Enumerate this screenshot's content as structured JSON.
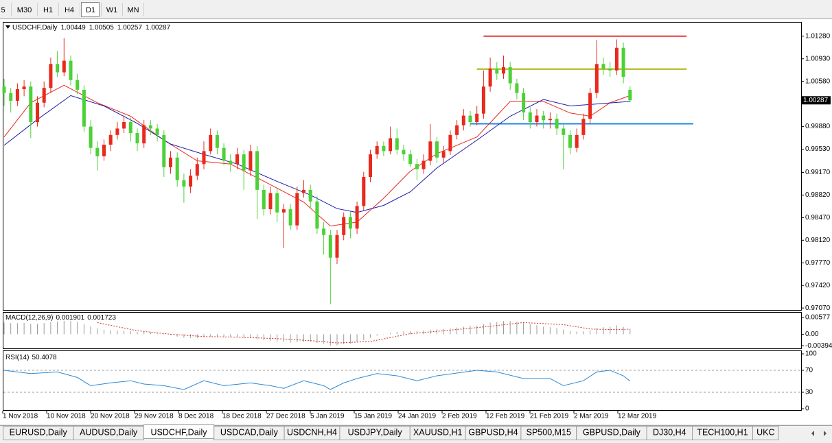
{
  "toolbar": {
    "timeframes": [
      "5",
      "M30",
      "H1",
      "H4",
      "D1",
      "W1",
      "MN"
    ],
    "active": 4
  },
  "chart_data": {
    "type": "candlestick",
    "symbol_label": "USDCHF,Daily",
    "bull_color": "#e8291c",
    "bear_color": "#4cd137",
    "ylim": [
      0.9704,
      1.0149
    ],
    "yticks": [
      {
        "value": 1.0128,
        "label": "1.01280"
      },
      {
        "value": 1.0093,
        "label": "1.00930"
      },
      {
        "value": 1.0058,
        "label": "1.00580"
      },
      {
        "value": 0.9988,
        "label": "0.99880"
      },
      {
        "value": 0.9953,
        "label": "0.99530"
      },
      {
        "value": 0.9917,
        "label": "0.99170"
      },
      {
        "value": 0.9882,
        "label": "0.98820"
      },
      {
        "value": 0.9847,
        "label": "0.98470"
      },
      {
        "value": 0.9812,
        "label": "0.98120"
      },
      {
        "value": 0.9777,
        "label": "0.97770"
      },
      {
        "value": 0.9742,
        "label": "0.97420"
      },
      {
        "value": 0.9707,
        "label": "0.97070"
      }
    ],
    "candles": [
      [
        1.005,
        1.0062,
        1.002,
        1.004
      ],
      [
        1.004,
        1.0048,
        1.001,
        1.0028
      ],
      [
        1.0028,
        1.0055,
        1.002,
        1.0046
      ],
      [
        1.0046,
        1.006,
        1.0035,
        1.005
      ],
      [
        1.005,
        1.0058,
        0.997,
        0.9995
      ],
      [
        0.9995,
        1.0035,
        0.9988,
        1.0025
      ],
      [
        1.0025,
        1.0058,
        1.0018,
        1.0048
      ],
      [
        1.0048,
        1.0095,
        1.004,
        1.0085
      ],
      [
        1.0085,
        1.0105,
        1.0065,
        1.0072
      ],
      [
        1.0072,
        1.0125,
        1.0066,
        1.009
      ],
      [
        1.009,
        1.0098,
        1.0052,
        1.006
      ],
      [
        1.006,
        1.007,
        1.0038,
        1.0045
      ],
      [
        1.0045,
        1.0052,
        0.998,
        0.9988
      ],
      [
        0.9988,
        0.9998,
        0.9945,
        0.9955
      ],
      [
        0.9955,
        0.9965,
        0.992,
        0.9942
      ],
      [
        0.9942,
        0.9968,
        0.9935,
        0.996
      ],
      [
        0.996,
        0.9982,
        0.995,
        0.9975
      ],
      [
        0.9975,
        0.9995,
        0.9968,
        0.9985
      ],
      [
        0.9985,
        1.0005,
        0.9978,
        0.9995
      ],
      [
        0.9995,
        1.0002,
        0.9965,
        0.9978
      ],
      [
        0.9978,
        0.9985,
        0.995,
        0.9962
      ],
      [
        0.9962,
        0.9998,
        0.9955,
        0.999
      ],
      [
        0.999,
        0.9998,
        0.9975,
        0.9985
      ],
      [
        0.9985,
        0.9992,
        0.9965,
        0.9975
      ],
      [
        0.9975,
        0.9982,
        0.991,
        0.9925
      ],
      [
        0.9925,
        0.995,
        0.9915,
        0.994
      ],
      [
        0.994,
        0.9948,
        0.9895,
        0.9905
      ],
      [
        0.9905,
        0.9915,
        0.987,
        0.9895
      ],
      [
        0.9895,
        0.9922,
        0.9885,
        0.9912
      ],
      [
        0.9912,
        0.994,
        0.9905,
        0.993
      ],
      [
        0.993,
        0.9965,
        0.9922,
        0.995
      ],
      [
        0.995,
        0.9985,
        0.9945,
        0.9975
      ],
      [
        0.9975,
        0.9982,
        0.9945,
        0.9955
      ],
      [
        0.9955,
        0.9962,
        0.9928,
        0.9935
      ],
      [
        0.9935,
        0.9945,
        0.9918,
        0.993
      ],
      [
        0.993,
        0.9955,
        0.9922,
        0.9945
      ],
      [
        0.9945,
        0.9952,
        0.989,
        0.992
      ],
      [
        0.992,
        0.996,
        0.9912,
        0.995
      ],
      [
        0.995,
        0.9958,
        0.9845,
        0.989
      ],
      [
        0.989,
        0.9898,
        0.985,
        0.986
      ],
      [
        0.986,
        0.9895,
        0.9852,
        0.9885
      ],
      [
        0.9885,
        0.9892,
        0.984,
        0.9855
      ],
      [
        0.9855,
        0.9868,
        0.98,
        0.986
      ],
      [
        0.986,
        0.9868,
        0.9828,
        0.9835
      ],
      [
        0.9835,
        0.9895,
        0.9828,
        0.9885
      ],
      [
        0.9885,
        0.9905,
        0.9878,
        0.989
      ],
      [
        0.989,
        0.9898,
        0.9862,
        0.9872
      ],
      [
        0.9872,
        0.988,
        0.9822,
        0.983
      ],
      [
        0.983,
        0.984,
        0.979,
        0.982
      ],
      [
        0.982,
        0.9828,
        0.9713,
        0.9785
      ],
      [
        0.9785,
        0.9828,
        0.9775,
        0.982
      ],
      [
        0.982,
        0.9855,
        0.9812,
        0.9848
      ],
      [
        0.9848,
        0.9856,
        0.9815,
        0.983
      ],
      [
        0.983,
        0.9872,
        0.9822,
        0.9865
      ],
      [
        0.9865,
        0.9918,
        0.9858,
        0.991
      ],
      [
        0.991,
        0.9952,
        0.9902,
        0.9945
      ],
      [
        0.9945,
        0.9965,
        0.9938,
        0.9958
      ],
      [
        0.9958,
        0.9965,
        0.9942,
        0.995
      ],
      [
        0.995,
        0.9988,
        0.9945,
        0.997
      ],
      [
        0.997,
        0.9985,
        0.9945,
        0.9952
      ],
      [
        0.9952,
        0.996,
        0.9935,
        0.9945
      ],
      [
        0.9945,
        0.9952,
        0.9925,
        0.993
      ],
      [
        0.993,
        0.9938,
        0.9905,
        0.9922
      ],
      [
        0.9922,
        0.9945,
        0.9915,
        0.9935
      ],
      [
        0.9935,
        0.9992,
        0.9928,
        0.9965
      ],
      [
        0.9965,
        0.9972,
        0.9932,
        0.994
      ],
      [
        0.994,
        0.9958,
        0.9932,
        0.995
      ],
      [
        0.995,
        0.9982,
        0.9944,
        0.9975
      ],
      [
        0.9975,
        0.9998,
        0.9968,
        0.999
      ],
      [
        0.999,
        1.0015,
        0.9982,
        1.0005
      ],
      [
        1.0005,
        1.0012,
        0.9988,
        0.9995
      ],
      [
        0.9995,
        1.002,
        0.999,
        1.0008
      ],
      [
        1.0008,
        1.0075,
        1.0,
        1.005
      ],
      [
        1.005,
        1.0095,
        1.0042,
        1.0078
      ],
      [
        1.0078,
        1.0088,
        1.006,
        1.007
      ],
      [
        1.007,
        1.0098,
        1.0062,
        1.008
      ],
      [
        1.008,
        1.0088,
        1.0045,
        1.0055
      ],
      [
        1.0055,
        1.0062,
        1.003,
        1.004
      ],
      [
        1.004,
        1.0048,
        0.9998,
        1.001
      ],
      [
        1.001,
        1.0018,
        0.9985,
        0.9995
      ],
      [
        0.9995,
        1.0015,
        0.9988,
        1.0005
      ],
      [
        1.0005,
        1.0012,
        0.9985,
        0.9998
      ],
      [
        0.9998,
        1.001,
        0.9985,
        1.0
      ],
      [
        1.0,
        1.0008,
        0.9975,
        0.9985
      ],
      [
        0.9985,
        0.9992,
        0.9922,
        0.9975
      ],
      [
        0.9975,
        0.9982,
        0.9945,
        0.9955
      ],
      [
        0.9955,
        0.9985,
        0.9948,
        0.9975
      ],
      [
        0.9975,
        1.0008,
        0.9968,
        1.0
      ],
      [
        1.0,
        1.0048,
        0.9992,
        1.004
      ],
      [
        1.004,
        1.0122,
        1.0032,
        1.0085
      ],
      [
        1.0085,
        1.0095,
        1.0068,
        1.0078
      ],
      [
        1.0078,
        1.0088,
        1.0065,
        1.0075
      ],
      [
        1.0075,
        1.0123,
        1.0068,
        1.011
      ],
      [
        1.011,
        1.0118,
        1.0055,
        1.0065
      ],
      [
        1.00449,
        1.00505,
        1.00257,
        1.00287
      ]
    ],
    "moving_averages": [
      {
        "color": "#e8291c",
        "x": [
          0,
          4,
          9,
          14,
          19,
          24,
          29,
          34,
          40,
          45,
          49,
          53,
          57,
          61,
          65,
          71,
          76,
          81,
          85,
          88,
          91,
          94
        ],
        "values": [
          0.9972,
          1.0025,
          1.0052,
          1.0025,
          1.0004,
          0.9967,
          0.9935,
          0.993,
          0.9898,
          0.9871,
          0.9834,
          0.984,
          0.9877,
          0.9919,
          0.9946,
          0.9972,
          1.0027,
          1.0027,
          1.0009,
          1.0004,
          1.0025,
          1.0036
        ]
      },
      {
        "color": "#1a1aa8",
        "x": [
          0,
          5,
          10,
          15,
          20,
          25,
          30,
          35,
          41,
          46,
          50,
          53,
          57,
          61,
          65,
          71,
          76,
          81,
          85,
          89,
          94
        ],
        "values": [
          0.9959,
          0.9999,
          1.0036,
          1.002,
          0.9993,
          0.9961,
          0.9945,
          0.993,
          0.9903,
          0.9882,
          0.9861,
          0.9855,
          0.9866,
          0.9887,
          0.9924,
          0.9967,
          1.0004,
          1.003,
          1.002,
          1.0023,
          1.0027
        ]
      }
    ],
    "levels": [
      {
        "value": 1.0128,
        "color": "#e53935",
        "from": 72,
        "to": 102.5
      },
      {
        "value": 1.0077,
        "color": "#a8b400",
        "from": 71,
        "to": 102.5
      },
      {
        "value": 0.99923,
        "color": "#1e88e5",
        "from": 70,
        "to": 103.5
      }
    ],
    "macd": {
      "label": "MACD(12,26,9)",
      "ylim": [
        -0.00485,
        0.00739
      ],
      "yticks": [
        0.00577,
        {
          "value": 0,
          "label": "0.00"
        },
        -0.003944
      ],
      "histogram": [
        0.004,
        0.0038,
        0.0038,
        0.0039,
        0.0036,
        0.0036,
        0.0038,
        0.0042,
        0.0044,
        0.0046,
        0.0045,
        0.0042,
        0.0035,
        0.0027,
        0.002,
        0.0016,
        0.0014,
        0.0013,
        0.0012,
        0.001,
        0.0008,
        0.0008,
        0.0007,
        0.0005,
        0.0,
        -0.0003,
        -0.0008,
        -0.0012,
        -0.0013,
        -0.0013,
        -0.0011,
        -0.0008,
        -0.0008,
        -0.0009,
        -0.001,
        -0.001,
        -0.0012,
        -0.0012,
        -0.0016,
        -0.0021,
        -0.0022,
        -0.0025,
        -0.0026,
        -0.0029,
        -0.0027,
        -0.0026,
        -0.0026,
        -0.003,
        -0.0033,
        -0.0039,
        -0.0038,
        -0.0034,
        -0.0032,
        -0.0027,
        -0.002,
        -0.0012,
        -0.0005,
        0.0,
        0.0005,
        0.0008,
        0.001,
        0.0011,
        0.0012,
        0.0013,
        0.0016,
        0.0017,
        0.0018,
        0.002,
        0.0023,
        0.0026,
        0.0029,
        0.003,
        0.0035,
        0.004,
        0.0042,
        0.0045,
        0.0045,
        0.0043,
        0.0039,
        0.0035,
        0.0031,
        0.0026,
        0.0024,
        0.0021,
        0.0016,
        0.0011,
        0.0009,
        0.001,
        0.0014,
        0.0021,
        0.0024,
        0.0026,
        0.003,
        0.0025,
        0.001901
      ],
      "histogram_color": "#9a9a9a",
      "signal": {
        "color": "#d32f2f",
        "x": [
          14,
          20,
          25,
          30,
          35,
          41,
          46,
          50,
          55,
          61,
          66,
          72,
          78,
          84,
          88,
          91,
          94
        ],
        "values": [
          0.004,
          0.0012,
          0.0,
          -0.0008,
          -0.001,
          -0.0015,
          -0.0022,
          -0.003,
          -0.0025,
          0.0002,
          0.0012,
          0.0025,
          0.004,
          0.0033,
          0.0018,
          0.0016,
          0.001723
        ]
      }
    },
    "rsi": {
      "label": "RSI(14)",
      "ylim": [
        0,
        100
      ],
      "yticks": [
        100,
        70,
        30,
        0
      ],
      "levels": [
        70,
        30
      ],
      "color": "#2b8ad6",
      "x": [
        0,
        4,
        8,
        11,
        13,
        16,
        19,
        21,
        24,
        27,
        30,
        33,
        37,
        40,
        42,
        45,
        48,
        49,
        51,
        53,
        56,
        59,
        62,
        65,
        71,
        74,
        78,
        82,
        84,
        87,
        89,
        91,
        93,
        94
      ],
      "values": [
        70,
        64,
        67,
        57,
        42,
        47,
        51,
        45,
        42,
        35,
        51,
        42,
        47,
        42,
        37,
        51,
        42,
        35,
        47,
        55,
        64,
        60,
        51,
        60,
        70,
        67,
        55,
        55,
        42,
        51,
        67,
        70,
        60,
        50.4078
      ]
    },
    "x_labels": [
      "1 Nov 2018",
      "10 Nov 2018",
      "20 Nov 2018",
      "29 Nov 2018",
      "8 Dec 2018",
      "18 Dec 2018",
      "27 Dec 2018",
      "5 Jan 2019",
      "15 Jan 2019",
      "24 Jan 2019",
      "2 Feb 2019",
      "12 Feb 2019",
      "21 Feb 2019",
      "2 Mar 2019",
      "12 Mar 2019"
    ]
  },
  "tabs": {
    "items": [
      "EURUSD,Daily",
      "AUDUSD,Daily",
      "USDCHF,Daily",
      "USDCAD,Daily",
      "USDCNH,H4",
      "USDJPY,Daily",
      "XAUUSD,H1",
      "GBPUSD,H4",
      "SP500,M15",
      "GBPUSD,Daily",
      "DJ30,H4",
      "TECH100,H1",
      "UKC"
    ],
    "active": 2
  }
}
